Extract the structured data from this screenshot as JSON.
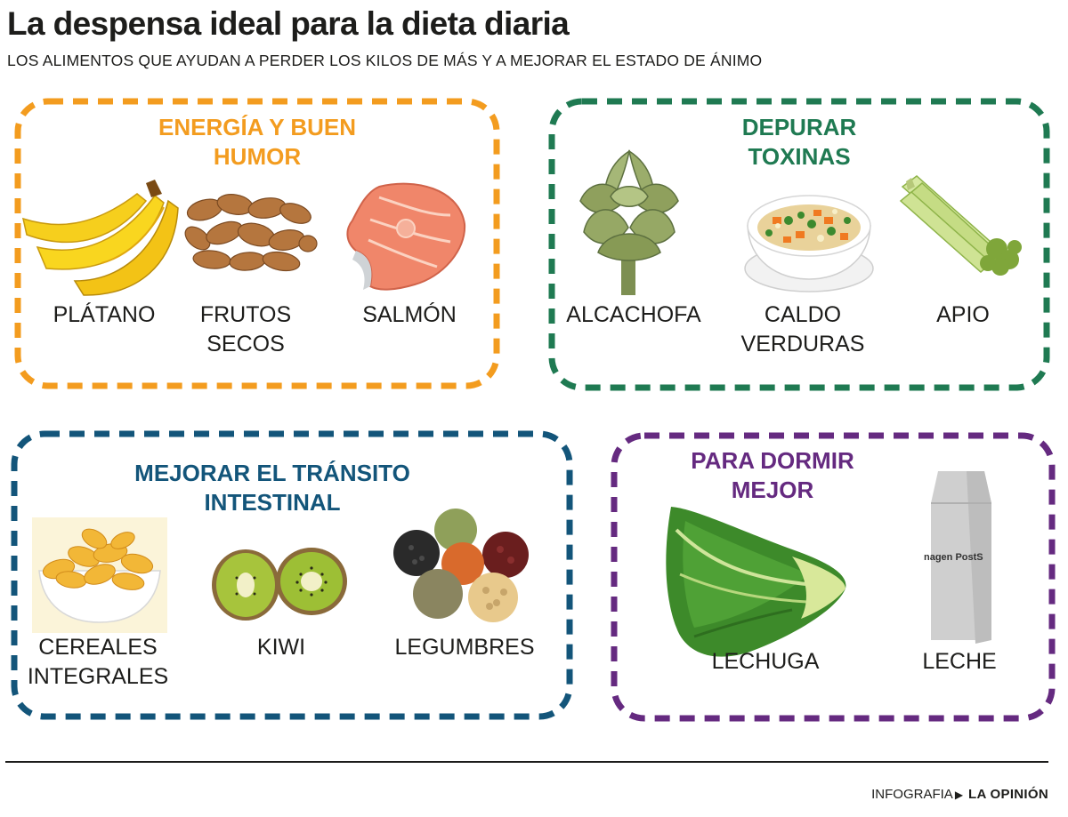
{
  "header": {
    "title": "La despensa ideal para la dieta diaria",
    "subtitle": "LOS ALIMENTOS QUE AYUDAN A PERDER LOS KILOS DE MÁS Y A MEJORAR EL ESTADO DE ÁNIMO"
  },
  "colors": {
    "energia": "#f39c1f",
    "depurar": "#1f7a52",
    "transito": "#13557a",
    "dormir": "#652a80"
  },
  "categories": {
    "energia": {
      "title": "ENERGÍA Y BUEN\nHUMOR",
      "items": [
        {
          "label": "PLÁTANO",
          "icon": "banana-icon"
        },
        {
          "label": "FRUTOS\nSECOS",
          "icon": "almonds-icon"
        },
        {
          "label": "SALMÓN",
          "icon": "salmon-icon"
        }
      ]
    },
    "depurar": {
      "title": "DEPURAR\nTOXINAS",
      "items": [
        {
          "label": "ALCACHOFA",
          "icon": "artichoke-icon"
        },
        {
          "label": "CALDO\nVERDURAS",
          "icon": "soup-icon"
        },
        {
          "label": "APIO",
          "icon": "celery-icon"
        }
      ]
    },
    "transito": {
      "title": "MEJORAR EL TRÁNSITO\nINTESTINAL",
      "items": [
        {
          "label": "CEREALES\nINTEGRALES",
          "icon": "cereal-bowl-icon"
        },
        {
          "label": "KIWI",
          "icon": "kiwi-icon"
        },
        {
          "label": "LEGUMBRES",
          "icon": "legumes-icon"
        }
      ]
    },
    "dormir": {
      "title": "PARA DORMIR\nMEJOR",
      "items": [
        {
          "label": "LECHUGA",
          "icon": "lettuce-icon"
        },
        {
          "label": "LECHE",
          "icon": "milk-carton-icon",
          "carton_text": "nagen PostS"
        }
      ]
    }
  },
  "footer": {
    "section": "INFOGRAFIA",
    "brand": "LA OPINIÓN"
  }
}
